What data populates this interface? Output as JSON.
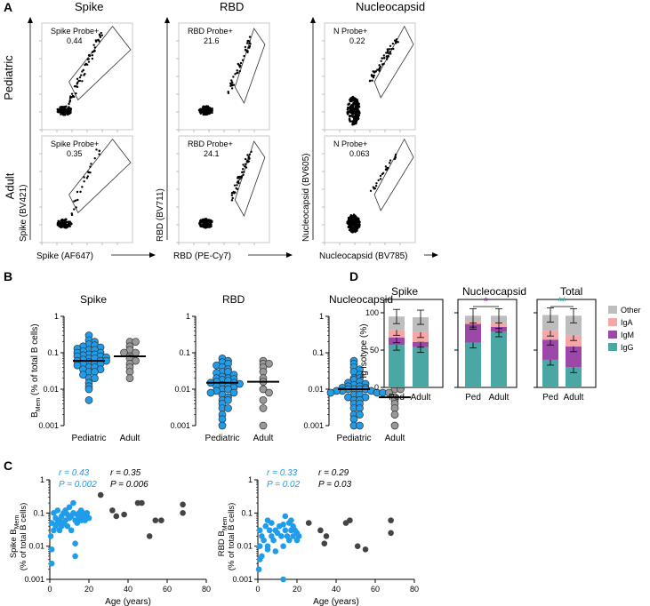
{
  "panel_letters": {
    "a": "A",
    "b": "B",
    "c": "C",
    "d": "D"
  },
  "flow": {
    "columns": [
      "Spike",
      "RBD",
      "Nucleocapsid"
    ],
    "rows": [
      "Pediatric",
      "Adult"
    ],
    "y_axis_labels": [
      "Spike (BV421)",
      "RBD (BV711)",
      "Nucleocapsid (BV605)"
    ],
    "x_axis_labels": [
      "Spike (AF647)",
      "RBD (PE-Cy7)",
      "Nucleocapsid (BV785)"
    ],
    "gates": [
      [
        {
          "name": "Spike Probe+",
          "value": "0.44"
        },
        {
          "name": "RBD Probe+",
          "value": "21.6"
        },
        {
          "name": "N Probe+",
          "value": "0.22"
        }
      ],
      [
        {
          "name": "Spike Probe+",
          "value": "0.35"
        },
        {
          "name": "RBD Probe+",
          "value": "24.1"
        },
        {
          "name": "N Probe+",
          "value": "0.063"
        }
      ]
    ]
  },
  "chart_data": [
    {
      "panel": "B",
      "type": "scatter",
      "title": "Spike",
      "y_log": true,
      "ylim": [
        0.001,
        1
      ],
      "ylabel": "B_Mem (% of total B cells)",
      "yticks": [
        "0.001",
        "0.01",
        "0.1",
        "1"
      ],
      "categories": [
        "Pediatric",
        "Adult"
      ],
      "median": [
        0.06,
        0.08
      ],
      "series": [
        {
          "color": "#1f9cea",
          "values": [
            0.3,
            0.22,
            0.2,
            0.17,
            0.16,
            0.15,
            0.14,
            0.13,
            0.12,
            0.12,
            0.11,
            0.1,
            0.1,
            0.09,
            0.09,
            0.085,
            0.08,
            0.08,
            0.075,
            0.07,
            0.07,
            0.065,
            0.06,
            0.06,
            0.06,
            0.055,
            0.05,
            0.05,
            0.05,
            0.045,
            0.04,
            0.04,
            0.035,
            0.035,
            0.03,
            0.03,
            0.025,
            0.02,
            0.02,
            0.015,
            0.012,
            0.01,
            0.005
          ]
        },
        {
          "color": "#999999",
          "values": [
            0.2,
            0.2,
            0.15,
            0.12,
            0.1,
            0.1,
            0.08,
            0.07,
            0.06,
            0.05,
            0.04,
            0.03,
            0.02
          ]
        }
      ]
    },
    {
      "panel": "B",
      "type": "scatter",
      "title": "RBD",
      "y_log": true,
      "ylim": [
        0.001,
        1
      ],
      "yticks": [
        "0.001",
        "0.01",
        "0.1",
        "1"
      ],
      "categories": [
        "Pediatric",
        "Adult"
      ],
      "median": [
        0.015,
        0.016
      ],
      "series": [
        {
          "color": "#1f9cea",
          "values": [
            0.07,
            0.06,
            0.055,
            0.05,
            0.045,
            0.04,
            0.035,
            0.03,
            0.03,
            0.028,
            0.025,
            0.022,
            0.02,
            0.02,
            0.019,
            0.018,
            0.017,
            0.016,
            0.015,
            0.015,
            0.014,
            0.013,
            0.012,
            0.012,
            0.011,
            0.01,
            0.01,
            0.009,
            0.008,
            0.008,
            0.007,
            0.006,
            0.005,
            0.005,
            0.004,
            0.003,
            0.003,
            0.002,
            0.0015,
            0.001
          ]
        },
        {
          "color": "#999999",
          "values": [
            0.06,
            0.05,
            0.05,
            0.04,
            0.03,
            0.02,
            0.016,
            0.01,
            0.008,
            0.005,
            0.003,
            0.001
          ]
        }
      ]
    },
    {
      "panel": "B",
      "type": "scatter",
      "title": "Nucleocapsid",
      "y_log": true,
      "ylim": [
        0.001,
        1
      ],
      "yticks": [
        "0.001",
        "0.01",
        "0.1",
        "1"
      ],
      "categories": [
        "Pediatric",
        "Adult"
      ],
      "median": [
        0.01,
        0.006
      ],
      "series": [
        {
          "color": "#1f9cea",
          "values": [
            0.06,
            0.05,
            0.04,
            0.035,
            0.03,
            0.025,
            0.02,
            0.02,
            0.018,
            0.016,
            0.015,
            0.014,
            0.013,
            0.012,
            0.012,
            0.011,
            0.011,
            0.01,
            0.01,
            0.01,
            0.01,
            0.009,
            0.009,
            0.009,
            0.008,
            0.008,
            0.008,
            0.007,
            0.007,
            0.006,
            0.006,
            0.005,
            0.005,
            0.004,
            0.004,
            0.003,
            0.003,
            0.002,
            0.002,
            0.0015,
            0.001,
            0.001
          ]
        },
        {
          "color": "#999999",
          "values": [
            0.02,
            0.015,
            0.012,
            0.01,
            0.01,
            0.008,
            0.006,
            0.005,
            0.004,
            0.003,
            0.002,
            0.001
          ]
        }
      ]
    },
    {
      "panel": "C",
      "type": "scatter",
      "y_log": true,
      "ylim": [
        0.001,
        1
      ],
      "xlim": [
        0,
        80
      ],
      "xlabel": "Age (years)",
      "ylabel": "Spike B_Mem (% of total B cells)",
      "xticks": [
        "0",
        "20",
        "40",
        "60",
        "80"
      ],
      "yticks": [
        "0.001",
        "0.01",
        "0.1",
        "1"
      ],
      "stats": [
        {
          "r": "r = 0.43",
          "p": "P = 0.002",
          "color": "#1f9cea"
        },
        {
          "r": "r = 0.35",
          "p": "P = 0.006",
          "color": "#000000"
        }
      ],
      "series": [
        {
          "color": "#1f9cea",
          "x": [
            0.5,
            1,
            1,
            2,
            2,
            3,
            3,
            4,
            4,
            5,
            5,
            6,
            6,
            7,
            7,
            8,
            8,
            9,
            9,
            10,
            10,
            11,
            11,
            12,
            12,
            13,
            13,
            14,
            14,
            15,
            15,
            16,
            16,
            17,
            17,
            18,
            18,
            19,
            19,
            20,
            13,
            14,
            1
          ],
          "y": [
            0.02,
            0.008,
            0.05,
            0.03,
            0.1,
            0.04,
            0.07,
            0.12,
            0.05,
            0.06,
            0.03,
            0.08,
            0.04,
            0.1,
            0.05,
            0.06,
            0.12,
            0.09,
            0.04,
            0.15,
            0.07,
            0.08,
            0.03,
            0.2,
            0.1,
            0.06,
            0.005,
            0.09,
            0.05,
            0.07,
            0.1,
            0.12,
            0.06,
            0.08,
            0.1,
            0.09,
            0.06,
            0.08,
            0.1,
            0.07,
            0.012,
            0.09,
            0.003
          ]
        },
        {
          "color": "#444444",
          "x": [
            26,
            32,
            34,
            38,
            45,
            47,
            51,
            54,
            57,
            68,
            68
          ],
          "y": [
            0.35,
            0.12,
            0.08,
            0.09,
            0.2,
            0.2,
            0.02,
            0.06,
            0.06,
            0.18,
            0.1
          ]
        }
      ]
    },
    {
      "panel": "C",
      "type": "scatter",
      "y_log": true,
      "ylim": [
        0.001,
        1
      ],
      "xlim": [
        0,
        80
      ],
      "xlabel": "Age (years)",
      "ylabel": "RBD B_Mem (% of total B cells)",
      "xticks": [
        "0",
        "20",
        "40",
        "60",
        "80"
      ],
      "yticks": [
        "0.001",
        "0.01",
        "0.1",
        "1"
      ],
      "stats": [
        {
          "r": "r = 0.33",
          "p": "P = 0.02",
          "color": "#1f9cea"
        },
        {
          "r": "r = 0.29",
          "p": "P = 0.03",
          "color": "#000000"
        }
      ],
      "series": [
        {
          "color": "#1f9cea",
          "x": [
            0.5,
            1,
            1,
            2,
            2,
            3,
            4,
            5,
            5,
            6,
            7,
            7,
            8,
            9,
            9,
            10,
            11,
            12,
            13,
            13,
            14,
            14,
            15,
            16,
            16,
            17,
            17,
            18,
            18,
            19,
            20,
            20,
            21,
            13,
            1,
            5
          ],
          "y": [
            0.002,
            0.01,
            0.03,
            0.005,
            0.02,
            0.015,
            0.04,
            0.01,
            0.06,
            0.03,
            0.02,
            0.05,
            0.015,
            0.03,
            0.007,
            0.025,
            0.04,
            0.02,
            0.001,
            0.01,
            0.03,
            0.08,
            0.02,
            0.05,
            0.015,
            0.03,
            0.06,
            0.02,
            0.04,
            0.03,
            0.025,
            0.015,
            0.02,
            0.045,
            0.004,
            0.008
          ]
        },
        {
          "color": "#444444",
          "x": [
            26,
            32,
            34,
            35,
            45,
            47,
            51,
            55,
            68,
            68
          ],
          "y": [
            0.05,
            0.03,
            0.012,
            0.02,
            0.05,
            0.06,
            0.01,
            0.008,
            0.06,
            0.025
          ]
        }
      ]
    },
    {
      "panel": "D",
      "type": "bar",
      "stacked": true,
      "ylabel": "Ig isotype (%)",
      "yticks": [
        "0",
        "50",
        "100"
      ],
      "ylim": [
        0,
        100
      ],
      "legend": [
        {
          "name": "Other",
          "color": "#bdbdbd"
        },
        {
          "name": "IgA",
          "color": "#f5a6a6"
        },
        {
          "name": "IgM",
          "color": "#9b48a8"
        },
        {
          "name": "IgG",
          "color": "#4aa7a3"
        }
      ],
      "groups": [
        {
          "title": "Spike",
          "categories": [
            "Ped",
            "Adult"
          ],
          "sig": "",
          "IgG": [
            57,
            54
          ],
          "IgM": [
            10,
            7
          ],
          "IgA": [
            10,
            13
          ],
          "Other": [
            18,
            20
          ]
        },
        {
          "title": "Nucleocapsid",
          "categories": [
            "Ped",
            "Adult"
          ],
          "sig": "*",
          "sig_color": "#9b48a8",
          "IgG": [
            60,
            75
          ],
          "IgM": [
            25,
            6
          ],
          "IgA": [
            3,
            5
          ],
          "Other": [
            8,
            10
          ]
        },
        {
          "title": "Total",
          "categories": [
            "Ped",
            "Adult"
          ],
          "sig": "**",
          "sig_color": "#4aa7a3",
          "IgG": [
            37,
            27
          ],
          "IgM": [
            27,
            28
          ],
          "IgA": [
            12,
            15
          ],
          "Other": [
            21,
            26
          ]
        }
      ]
    }
  ]
}
